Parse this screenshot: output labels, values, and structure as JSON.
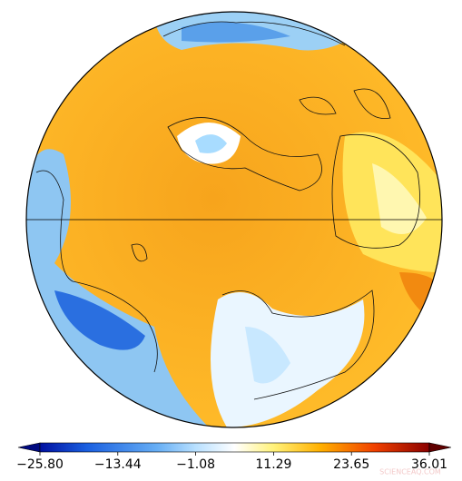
{
  "colorbar": {
    "range": [
      -25.8,
      36.01
    ],
    "ticks": [
      {
        "value": -25.8,
        "label": "−25.80"
      },
      {
        "value": -13.44,
        "label": "−13.44"
      },
      {
        "value": -1.08,
        "label": "−1.08"
      },
      {
        "value": 11.29,
        "label": "11.29"
      },
      {
        "value": 23.65,
        "label": "23.65"
      },
      {
        "value": 36.01,
        "label": "36.01"
      }
    ]
  },
  "watermark": "SCIENCEAQ.COM"
}
